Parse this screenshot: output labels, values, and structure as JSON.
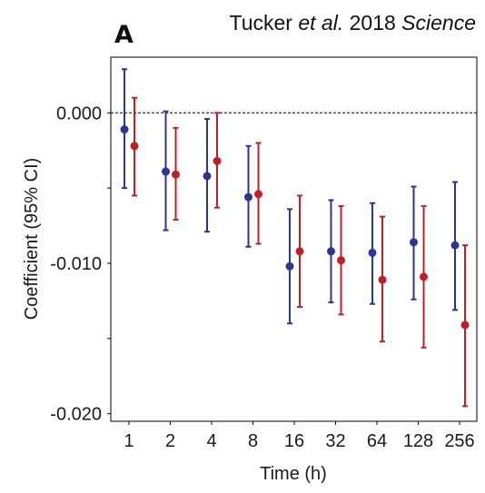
{
  "panel_label": "A",
  "citation": {
    "author": "Tucker",
    "etal": "et al.",
    "year": "2018",
    "journal": "Science"
  },
  "colors": {
    "series1": "#2f3491",
    "series2": "#c0202b",
    "axis": "#000000",
    "reference_line": "#000000"
  },
  "chart_data": {
    "type": "scatter",
    "title": "",
    "xlabel": "Time (h)",
    "ylabel": "Coefficient (95% CI)",
    "categories": [
      "1",
      "2",
      "4",
      "8",
      "16",
      "32",
      "64",
      "128",
      "256"
    ],
    "ylim": [
      -0.0205,
      0.0037
    ],
    "yticks": [
      {
        "value": 0.0,
        "label": "0.000"
      },
      {
        "value": -0.005,
        "label": ""
      },
      {
        "value": -0.01,
        "label": "-0.010"
      },
      {
        "value": -0.015,
        "label": ""
      },
      {
        "value": -0.02,
        "label": "-0.020"
      }
    ],
    "reference_line": 0.0,
    "series": [
      {
        "color": "#2f3491",
        "points": [
          {
            "x": "1",
            "y": -0.0011,
            "lo": -0.005,
            "hi": 0.0029
          },
          {
            "x": "2",
            "y": -0.0039,
            "lo": -0.0078,
            "hi": 0.0001
          },
          {
            "x": "4",
            "y": -0.0042,
            "lo": -0.0079,
            "hi": -0.0004
          },
          {
            "x": "8",
            "y": -0.0056,
            "lo": -0.0089,
            "hi": -0.0022
          },
          {
            "x": "16",
            "y": -0.0102,
            "lo": -0.014,
            "hi": -0.0064
          },
          {
            "x": "32",
            "y": -0.0092,
            "lo": -0.0126,
            "hi": -0.0058
          },
          {
            "x": "64",
            "y": -0.0093,
            "lo": -0.0127,
            "hi": -0.006
          },
          {
            "x": "128",
            "y": -0.0086,
            "lo": -0.0124,
            "hi": -0.0049
          },
          {
            "x": "256",
            "y": -0.0088,
            "lo": -0.0131,
            "hi": -0.0046
          }
        ]
      },
      {
        "color": "#c0202b",
        "points": [
          {
            "x": "1",
            "y": -0.0022,
            "lo": -0.0055,
            "hi": 0.001
          },
          {
            "x": "2",
            "y": -0.0041,
            "lo": -0.0071,
            "hi": -0.001
          },
          {
            "x": "4",
            "y": -0.0032,
            "lo": -0.0063,
            "hi": 0.0
          },
          {
            "x": "8",
            "y": -0.0054,
            "lo": -0.0087,
            "hi": -0.002
          },
          {
            "x": "16",
            "y": -0.0092,
            "lo": -0.0129,
            "hi": -0.0055
          },
          {
            "x": "32",
            "y": -0.0098,
            "lo": -0.0134,
            "hi": -0.0062
          },
          {
            "x": "64",
            "y": -0.0111,
            "lo": -0.0152,
            "hi": -0.0069
          },
          {
            "x": "128",
            "y": -0.0109,
            "lo": -0.0156,
            "hi": -0.0062
          },
          {
            "x": "256",
            "y": -0.0141,
            "lo": -0.0195,
            "hi": -0.0088
          }
        ]
      }
    ]
  }
}
